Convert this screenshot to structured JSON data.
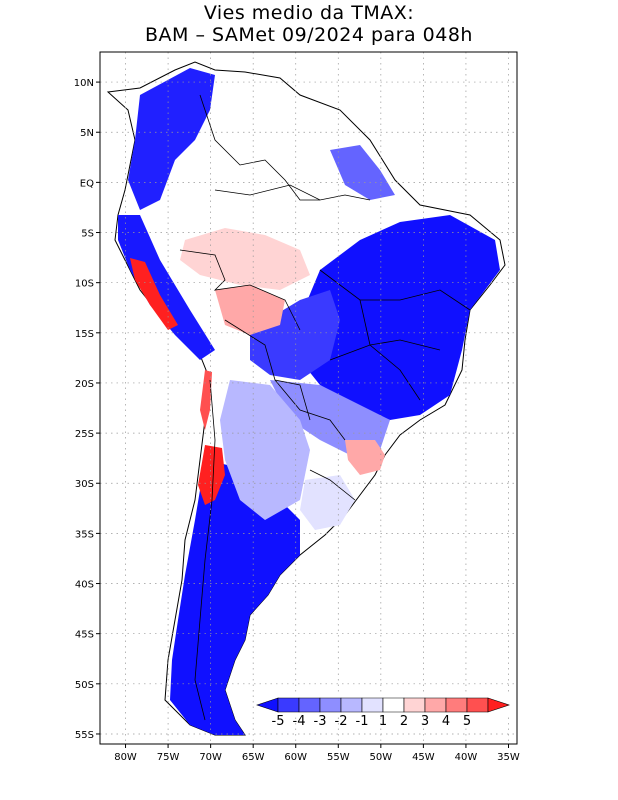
{
  "title": {
    "line1": "Vies medio da TMAX:",
    "line2": "BAM – SAMet 09/2024  para 048h"
  },
  "map": {
    "region": "South America",
    "field": "TMAX bias (model minus observed)",
    "lat_labels": [
      "10N",
      "5N",
      "EQ",
      "5S",
      "10S",
      "15S",
      "20S",
      "25S",
      "30S",
      "35S",
      "40S",
      "45S",
      "50S",
      "55S"
    ],
    "lon_labels": [
      "80W",
      "75W",
      "70W",
      "65W",
      "60W",
      "55W",
      "50W",
      "45W",
      "40W",
      "35W"
    ],
    "lat_values": [
      10,
      5,
      0,
      -5,
      -10,
      -15,
      -20,
      -25,
      -30,
      -35,
      -40,
      -45,
      -50,
      -55
    ],
    "lon_values": [
      -80,
      -75,
      -70,
      -65,
      -60,
      -55,
      -50,
      -45,
      -40,
      -35
    ],
    "lat_range": [
      -56,
      13
    ],
    "lon_range": [
      -83,
      -34
    ]
  },
  "colorbar": {
    "labels": [
      "-5",
      "-4",
      "-3",
      "-2",
      "-1",
      "1",
      "2",
      "3",
      "4",
      "5"
    ],
    "colors": [
      "#1010ff",
      "#3a3aff",
      "#6464ff",
      "#8e8eff",
      "#b8b8ff",
      "#e2e2ff",
      "#ffffff",
      "#ffd4d4",
      "#ffa8a8",
      "#ff7c7c",
      "#ff5050",
      "#ff2020"
    ]
  },
  "colors": {
    "strong_cold": "#1010ff",
    "moderate_cold": "#6464ff",
    "weak_cold": "#b8b8ff",
    "neutral": "#ffffff",
    "weak_warm": "#ffd4d4",
    "strong_warm": "#ff2020",
    "grid": "#999999"
  }
}
